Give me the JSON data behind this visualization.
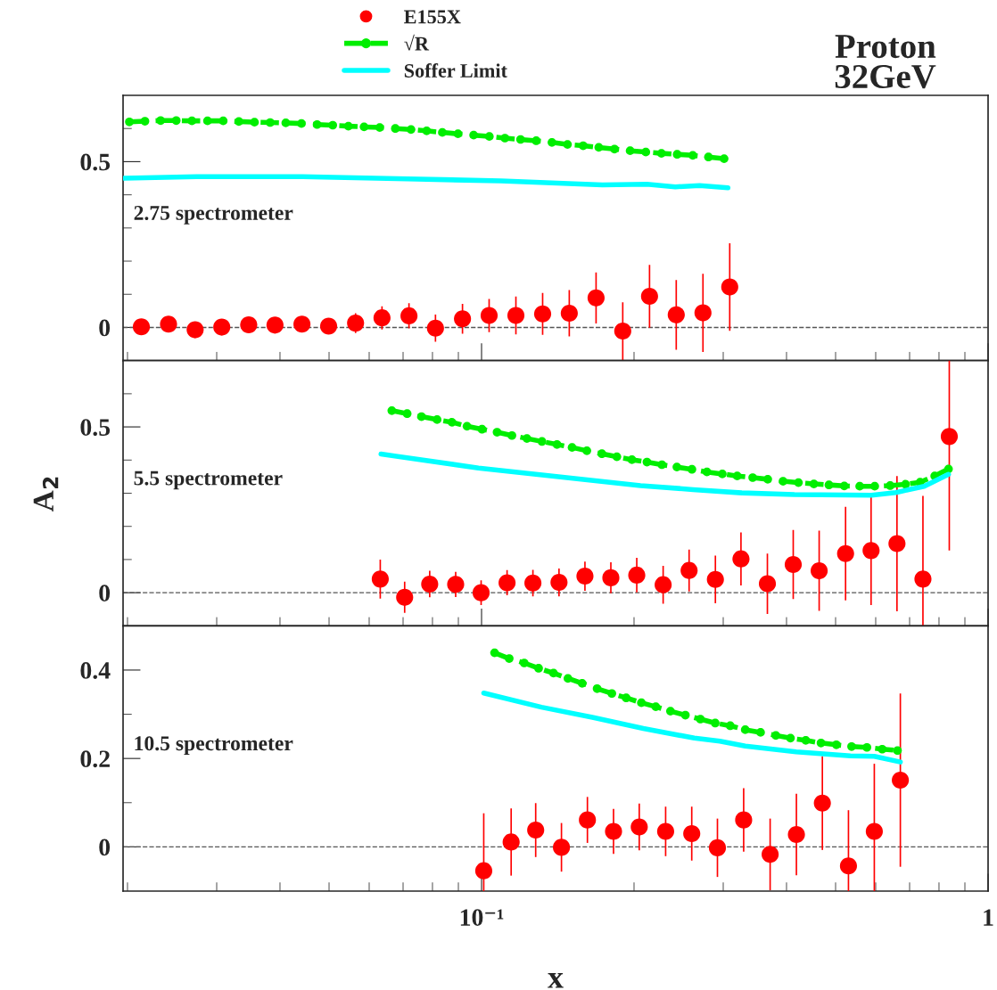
{
  "chart_data": [
    {
      "type": "scatter",
      "title": "Proton\n32GeV",
      "annotations": [
        "2.75 spectrometer"
      ],
      "legend": "top",
      "grid": false,
      "tick_labels": "y",
      "xlim": [
        0.0196,
        1
      ],
      "log": "x",
      "ylim": [
        -0.1,
        0.7
      ],
      "xticks": [
        {
          "value": 0.02,
          "label": null
        },
        {
          "value": 0.03,
          "label": null
        },
        {
          "value": 0.04,
          "label": null
        },
        {
          "value": 0.05,
          "label": null
        },
        {
          "value": 0.06,
          "label": null
        },
        {
          "value": 0.07,
          "label": null
        },
        {
          "value": 0.08,
          "label": null
        },
        {
          "value": 0.09,
          "label": null
        },
        {
          "value": 0.1,
          "label": null
        },
        {
          "value": 0.2,
          "label": null
        },
        {
          "value": 0.3,
          "label": null
        },
        {
          "value": 0.4,
          "label": null
        },
        {
          "value": 0.5,
          "label": null
        },
        {
          "value": 0.6,
          "label": null
        },
        {
          "value": 0.7,
          "label": null
        },
        {
          "value": 0.8,
          "label": null
        },
        {
          "value": 0.9,
          "label": null
        },
        {
          "value": 1,
          "label": null
        }
      ],
      "yticks": [
        0,
        {
          "value": 0.1,
          "label": null
        },
        {
          "value": 0.2,
          "label": null
        },
        {
          "value": 0.3,
          "label": null
        },
        {
          "value": 0.4,
          "label": null
        },
        0.5,
        {
          "value": 0.6,
          "label": null
        }
      ],
      "ref_lines": [
        {
          "axis": "y",
          "value": 0,
          "line_style": "dashed",
          "color": "#555555"
        }
      ],
      "series": [
        {
          "name": "E155X",
          "type": "scatter",
          "marker": "circle",
          "color": "#ff0000",
          "x": [
            0.0213,
            0.0241,
            0.0272,
            0.0307,
            0.0347,
            0.0391,
            0.0442,
            0.0499,
            0.0564,
            0.0636,
            0.0719,
            0.0811,
            0.0917,
            0.1035,
            0.1169,
            0.132,
            0.149,
            0.1683,
            0.19,
            0.2146,
            0.2423,
            0.2736,
            0.309
          ],
          "values": [
            0.002,
            0.01,
            -0.007,
            0.001,
            0.008,
            0.007,
            0.01,
            0.004,
            0.013,
            0.029,
            0.035,
            -0.002,
            0.026,
            0.036,
            0.036,
            0.041,
            0.043,
            0.089,
            -0.011,
            0.094,
            0.038,
            0.044,
            0.122
          ],
          "errors": [
            0.008,
            0.008,
            0.008,
            0.008,
            0.012,
            0.014,
            0.016,
            0.018,
            0.03,
            0.035,
            0.038,
            0.041,
            0.045,
            0.05,
            0.057,
            0.063,
            0.07,
            0.077,
            0.087,
            0.095,
            0.105,
            0.118,
            0.132
          ]
        },
        {
          "name": "√R",
          "type": "line",
          "marker": "circle",
          "line_style": "dashed",
          "color": "#00ee00",
          "x": [
            0.02017,
            0.02165,
            0.02325,
            0.02496,
            0.0268,
            0.02877,
            0.0309,
            0.03318,
            0.03562,
            0.03825,
            0.04107,
            0.0441,
            0.04735,
            0.05084,
            0.05459,
            0.05862,
            0.06295,
            0.06758,
            0.07257,
            0.07792,
            0.08367,
            0.08984,
            0.09647,
            0.1036,
            0.1112,
            0.1194,
            0.1282,
            0.1377,
            0.1478,
            0.1587,
            0.1704,
            0.183,
            0.1965,
            0.211,
            0.2265,
            0.2433,
            0.2612,
            0.2805,
            0.3012
          ],
          "values": [
            0.62,
            0.622,
            0.624,
            0.624,
            0.623,
            0.623,
            0.623,
            0.621,
            0.619,
            0.618,
            0.617,
            0.615,
            0.612,
            0.61,
            0.607,
            0.605,
            0.603,
            0.6,
            0.597,
            0.593,
            0.588,
            0.584,
            0.58,
            0.576,
            0.571,
            0.567,
            0.563,
            0.558,
            0.552,
            0.548,
            0.543,
            0.538,
            0.533,
            0.529,
            0.525,
            0.522,
            0.519,
            0.514,
            0.509
          ]
        },
        {
          "name": "Soffer Limit",
          "type": "line",
          "marker": "none",
          "line_style": "solid",
          "color": "#00ffff",
          "x": [
            0.0197,
            0.0274,
            0.0443,
            0.0715,
            0.1093,
            0.1732,
            0.2121,
            0.2413,
            0.2694,
            0.3066
          ],
          "values": [
            0.45,
            0.455,
            0.455,
            0.448,
            0.442,
            0.43,
            0.432,
            0.424,
            0.428,
            0.421
          ]
        }
      ]
    },
    {
      "type": "scatter",
      "ylabel": "A$_{2}$",
      "annotations": [
        "5.5 spectrometer"
      ],
      "grid": false,
      "tick_labels": "y",
      "xlim": [
        0.0196,
        1
      ],
      "log": "x",
      "ylim": [
        -0.1,
        0.7
      ],
      "xticks": [
        {
          "value": 0.02,
          "label": null
        },
        {
          "value": 0.03,
          "label": null
        },
        {
          "value": 0.04,
          "label": null
        },
        {
          "value": 0.05,
          "label": null
        },
        {
          "value": 0.06,
          "label": null
        },
        {
          "value": 0.07,
          "label": null
        },
        {
          "value": 0.08,
          "label": null
        },
        {
          "value": 0.09,
          "label": null
        },
        {
          "value": 0.1,
          "label": null
        },
        {
          "value": 0.2,
          "label": null
        },
        {
          "value": 0.3,
          "label": null
        },
        {
          "value": 0.4,
          "label": null
        },
        {
          "value": 0.5,
          "label": null
        },
        {
          "value": 0.6,
          "label": null
        },
        {
          "value": 0.7,
          "label": null
        },
        {
          "value": 0.8,
          "label": null
        },
        {
          "value": 0.9,
          "label": null
        },
        {
          "value": 1,
          "label": null
        }
      ],
      "yticks": [
        0,
        {
          "value": 0.1,
          "label": null
        },
        {
          "value": 0.2,
          "label": null
        },
        {
          "value": 0.3,
          "label": null
        },
        {
          "value": 0.4,
          "label": null
        },
        0.5,
        {
          "value": 0.6,
          "label": null
        }
      ],
      "ref_lines": [
        {
          "axis": "y",
          "value": 0,
          "line_style": "dashed",
          "color": "#555555"
        }
      ],
      "series": [
        {
          "type": "scatter",
          "marker": "circle",
          "color": "#ff0000",
          "x": [
            0.0631,
            0.0705,
            0.079,
            0.0889,
            0.0998,
            0.1123,
            0.1263,
            0.1422,
            0.16,
            0.18,
            0.2025,
            0.2283,
            0.2569,
            0.2895,
            0.3252,
            0.3667,
            0.4124,
            0.464,
            0.5232,
            0.5875,
            0.6609,
            0.7437,
            0.8383
          ],
          "values": [
            0.041,
            -0.014,
            0.026,
            0.025,
            0.0,
            0.03,
            0.029,
            0.031,
            0.05,
            0.045,
            0.053,
            0.024,
            0.067,
            0.04,
            0.102,
            0.027,
            0.085,
            0.066,
            0.118,
            0.127,
            0.148,
            0.041,
            0.471
          ],
          "errors": [
            0.059,
            0.047,
            0.04,
            0.038,
            0.037,
            0.038,
            0.04,
            0.042,
            0.044,
            0.047,
            0.052,
            0.057,
            0.063,
            0.072,
            0.08,
            0.091,
            0.104,
            0.121,
            0.141,
            0.164,
            0.204,
            0.251,
            0.344
          ]
        },
        {
          "type": "line",
          "marker": "circle",
          "line_style": "dashed",
          "color": "#00ee00",
          "x": [
            0.0665,
            0.0713,
            0.0761,
            0.0817,
            0.0874,
            0.0936,
            0.1002,
            0.1073,
            0.1148,
            0.1229,
            0.1316,
            0.1409,
            0.1509,
            0.1614,
            0.1728,
            0.185,
            0.1981,
            0.2121,
            0.227,
            0.243,
            0.2602,
            0.2786,
            0.2988,
            0.3197,
            0.343,
            0.3673,
            0.3938,
            0.4223,
            0.453,
            0.4851,
            0.5201,
            0.5579,
            0.5973,
            0.6408,
            0.6873,
            0.7342,
            0.7846,
            0.8354
          ],
          "values": [
            0.549,
            0.54,
            0.531,
            0.522,
            0.514,
            0.502,
            0.493,
            0.484,
            0.474,
            0.465,
            0.456,
            0.447,
            0.438,
            0.428,
            0.419,
            0.41,
            0.401,
            0.394,
            0.386,
            0.379,
            0.372,
            0.364,
            0.358,
            0.352,
            0.347,
            0.342,
            0.336,
            0.332,
            0.328,
            0.325,
            0.322,
            0.321,
            0.321,
            0.323,
            0.327,
            0.333,
            0.352,
            0.373
          ]
        },
        {
          "type": "line",
          "marker": "none",
          "line_style": "solid",
          "color": "#00ffff",
          "x": [
            0.0633,
            0.0986,
            0.206,
            0.2617,
            0.3264,
            0.4147,
            0.5887,
            0.6574,
            0.7478,
            0.8354
          ],
          "values": [
            0.418,
            0.376,
            0.323,
            0.311,
            0.301,
            0.296,
            0.294,
            0.302,
            0.321,
            0.357
          ]
        }
      ]
    },
    {
      "type": "scatter",
      "xlabel": "x",
      "annotations": [
        "10.5 spectrometer"
      ],
      "grid": false,
      "xlim": [
        0.0196,
        1
      ],
      "log": "x",
      "ylim": [
        -0.1,
        0.5
      ],
      "xticks": [
        {
          "value": 0.02,
          "label": null
        },
        {
          "value": 0.03,
          "label": null
        },
        {
          "value": 0.04,
          "label": null
        },
        {
          "value": 0.05,
          "label": null
        },
        {
          "value": 0.06,
          "label": null
        },
        {
          "value": 0.07,
          "label": null
        },
        {
          "value": 0.08,
          "label": null
        },
        {
          "value": 0.09,
          "label": null
        },
        {
          "value": 0.1,
          "label": "10⁻¹"
        },
        {
          "value": 0.2,
          "label": null
        },
        {
          "value": 0.3,
          "label": null
        },
        {
          "value": 0.4,
          "label": null
        },
        {
          "value": 0.5,
          "label": null
        },
        {
          "value": 0.6,
          "label": null
        },
        {
          "value": 0.7,
          "label": null
        },
        {
          "value": 0.8,
          "label": null
        },
        {
          "value": 0.9,
          "label": null
        },
        1
      ],
      "yticks": [
        0,
        {
          "value": 0.1,
          "label": null
        },
        0.2,
        {
          "value": 0.3,
          "label": null
        },
        0.4
      ],
      "ref_lines": [
        {
          "axis": "y",
          "value": 0,
          "line_style": "dashed",
          "color": "#555555"
        }
      ],
      "series": [
        {
          "type": "scatter",
          "marker": "circle",
          "color": "#ff0000",
          "x": [
            0.101,
            0.1144,
            0.1279,
            0.1438,
            0.1618,
            0.1822,
            0.2048,
            0.2309,
            0.26,
            0.2922,
            0.3292,
            0.3713,
            0.4184,
            0.4708,
            0.5301,
            0.5962,
            0.6711
          ],
          "values": [
            -0.054,
            0.011,
            0.038,
            -0.001,
            0.061,
            0.035,
            0.045,
            0.035,
            0.03,
            -0.002,
            0.061,
            -0.017,
            0.028,
            0.099,
            -0.043,
            0.035,
            0.151
          ],
          "errors": [
            0.13,
            0.076,
            0.061,
            0.055,
            0.052,
            0.051,
            0.053,
            0.056,
            0.061,
            0.066,
            0.072,
            0.081,
            0.092,
            0.106,
            0.126,
            0.153,
            0.196
          ]
        },
        {
          "type": "line",
          "marker": "circle",
          "line_style": "dashed",
          "color": "#00ee00",
          "x": [
            0.1061,
            0.1134,
            0.1214,
            0.1296,
            0.1387,
            0.1481,
            0.158,
            0.1691,
            0.1808,
            0.193,
            0.2068,
            0.2208,
            0.236,
            0.2526,
            0.2704,
            0.2893,
            0.3097,
            0.3316,
            0.3555,
            0.3811,
            0.4073,
            0.4366,
            0.4679,
            0.5017,
            0.5377,
            0.5765,
            0.618,
            0.6624
          ],
          "values": [
            0.439,
            0.426,
            0.416,
            0.404,
            0.393,
            0.381,
            0.37,
            0.358,
            0.347,
            0.337,
            0.326,
            0.317,
            0.307,
            0.298,
            0.289,
            0.28,
            0.274,
            0.265,
            0.259,
            0.252,
            0.246,
            0.241,
            0.235,
            0.231,
            0.227,
            0.225,
            0.221,
            0.218
          ]
        },
        {
          "type": "line",
          "marker": "none",
          "line_style": "solid",
          "color": "#00ffff",
          "x": [
            0.101,
            0.1313,
            0.1655,
            0.2086,
            0.263,
            0.2954,
            0.3316,
            0.4181,
            0.5348,
            0.5962,
            0.6711
          ],
          "values": [
            0.348,
            0.316,
            0.293,
            0.268,
            0.246,
            0.239,
            0.228,
            0.215,
            0.206,
            0.205,
            0.192
          ]
        }
      ]
    }
  ]
}
